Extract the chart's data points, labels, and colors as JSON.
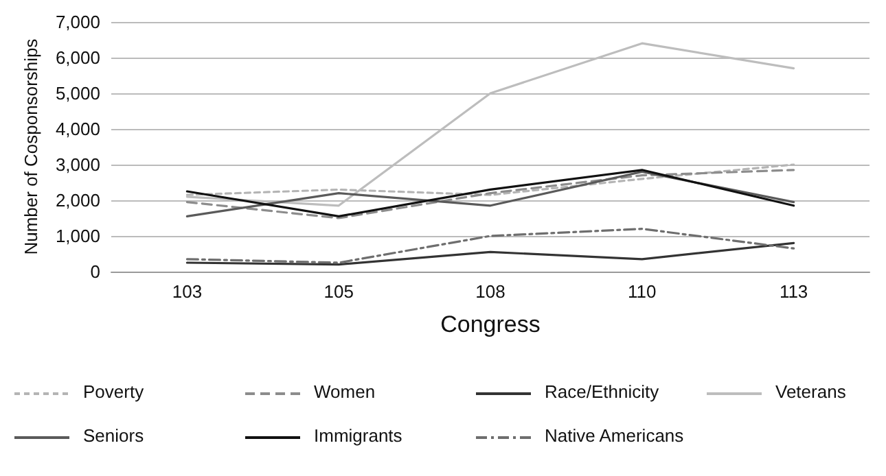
{
  "chart_data": {
    "type": "line",
    "xlabel": "Congress",
    "ylabel": "Number of Cosponsorships",
    "categories": [
      "103",
      "105",
      "108",
      "110",
      "113"
    ],
    "series": [
      {
        "name": "Poverty",
        "color": "#b4b4b4",
        "line_style": "dotted",
        "values": [
          2150,
          2300,
          2150,
          2600,
          3000
        ]
      },
      {
        "name": "Women",
        "color": "#8c8c8c",
        "line_style": "dashed",
        "values": [
          1950,
          1500,
          2200,
          2700,
          2850
        ]
      },
      {
        "name": "Race/Ethnicity",
        "color": "#333333",
        "line_style": "solid",
        "values": [
          250,
          200,
          550,
          350,
          800
        ]
      },
      {
        "name": "Veterans",
        "color": "#bdbdbd",
        "line_style": "solid",
        "values": [
          2100,
          1850,
          5000,
          6400,
          5700
        ]
      },
      {
        "name": "Seniors",
        "color": "#5a5a5a",
        "line_style": "solid",
        "values": [
          1550,
          2200,
          1850,
          2800,
          1950
        ]
      },
      {
        "name": "Immigrants",
        "color": "#111111",
        "line_style": "solid",
        "values": [
          2250,
          1550,
          2300,
          2850,
          1850
        ]
      },
      {
        "name": "Native Americans",
        "color": "#6e6e6e",
        "line_style": "dashdot",
        "values": [
          350,
          250,
          1000,
          1200,
          650
        ]
      }
    ],
    "ylim": [
      0,
      7000
    ],
    "yticks": [
      0,
      {
        "value": 1000,
        "label": "1,000"
      },
      {
        "value": 2000,
        "label": "2,000"
      },
      {
        "value": 3000,
        "label": "3,000"
      },
      {
        "value": 4000,
        "label": "4,000"
      },
      {
        "value": 5000,
        "label": "5,000"
      },
      {
        "value": 6000,
        "label": "6,000"
      },
      {
        "value": 7000,
        "label": "7,000"
      }
    ],
    "grid": "y",
    "legend": "bottom",
    "marker": "none"
  }
}
